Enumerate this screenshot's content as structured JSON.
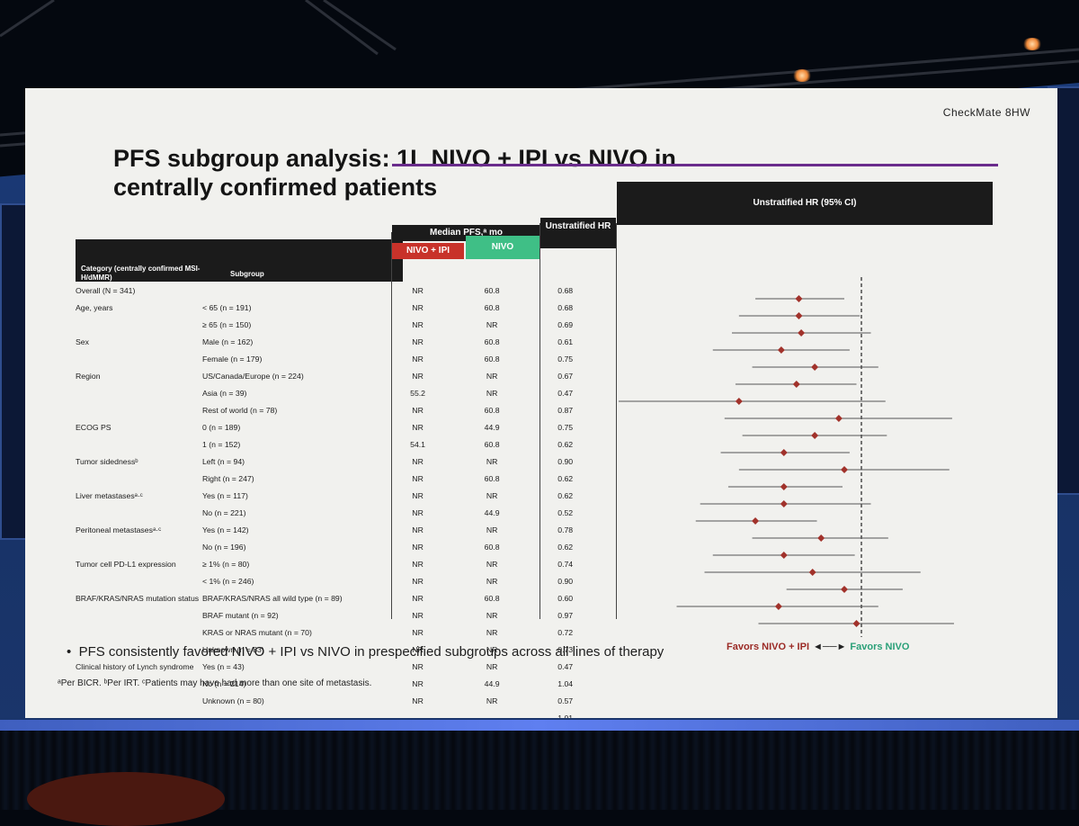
{
  "slide": {
    "brand": "CheckMate 8HW",
    "title": "PFS subgroup analysis: 1L NIVO + IPI vs NIVO in centrally confirmed patients",
    "headers": {
      "category": "Category (centrally confirmed MSI-H/dMMR)",
      "subgroup": "Subgroup",
      "median_pfs": "Median PFS,ᵃ mo",
      "arm1": "NIVO + IPI",
      "arm2": "NIVO",
      "hr": "Unstratified HR",
      "forest": "Unstratified HR (95% CI)"
    },
    "rows": [
      {
        "category": "Overall (N = 341)",
        "subgroup": "",
        "nivo_ipi": "NR",
        "nivo": "60.8",
        "hr": "0.68",
        "lo": 0.52,
        "hi": 0.9
      },
      {
        "category": "Age, years",
        "subgroup": "< 65 (n = 191)",
        "nivo_ipi": "NR",
        "nivo": "60.8",
        "hr": "0.68",
        "lo": 0.47,
        "hi": 0.99
      },
      {
        "category": "",
        "subgroup": "≥ 65 (n = 150)",
        "nivo_ipi": "NR",
        "nivo": "NR",
        "hr": "0.69",
        "lo": 0.45,
        "hi": 1.06
      },
      {
        "category": "Sex",
        "subgroup": "Male (n = 162)",
        "nivo_ipi": "NR",
        "nivo": "60.8",
        "hr": "0.61",
        "lo": 0.4,
        "hi": 0.93
      },
      {
        "category": "",
        "subgroup": "Female (n = 179)",
        "nivo_ipi": "NR",
        "nivo": "60.8",
        "hr": "0.75",
        "lo": 0.51,
        "hi": 1.11
      },
      {
        "category": "Region",
        "subgroup": "US/Canada/Europe (n = 224)",
        "nivo_ipi": "NR",
        "nivo": "NR",
        "hr": "0.67",
        "lo": 0.46,
        "hi": 0.97
      },
      {
        "category": "",
        "subgroup": "Asia (n = 39)",
        "nivo_ipi": "55.2",
        "nivo": "NR",
        "hr": "0.47",
        "lo": 0.19,
        "hi": 1.16
      },
      {
        "category": "",
        "subgroup": "Rest of world (n = 78)",
        "nivo_ipi": "NR",
        "nivo": "60.8",
        "hr": "0.87",
        "lo": 0.43,
        "hi": 1.75
      },
      {
        "category": "ECOG PS",
        "subgroup": "0 (n = 189)",
        "nivo_ipi": "NR",
        "nivo": "44.9",
        "hr": "0.75",
        "lo": 0.48,
        "hi": 1.17
      },
      {
        "category": "",
        "subgroup": "1 (n = 152)",
        "nivo_ipi": "54.1",
        "nivo": "60.8",
        "hr": "0.62",
        "lo": 0.42,
        "hi": 0.93
      },
      {
        "category": "Tumor sidednessᵇ",
        "subgroup": "Left (n = 94)",
        "nivo_ipi": "NR",
        "nivo": "NR",
        "hr": "0.90",
        "lo": 0.47,
        "hi": 1.72
      },
      {
        "category": "",
        "subgroup": "Right (n = 247)",
        "nivo_ipi": "NR",
        "nivo": "60.8",
        "hr": "0.62",
        "lo": 0.44,
        "hi": 0.89
      },
      {
        "category": "Liver metastasesᵃ·ᶜ",
        "subgroup": "Yes (n = 117)",
        "nivo_ipi": "NR",
        "nivo": "NR",
        "hr": "0.62",
        "lo": 0.37,
        "hi": 1.06
      },
      {
        "category": "",
        "subgroup": "No (n = 221)",
        "nivo_ipi": "NR",
        "nivo": "44.9",
        "hr": "0.52",
        "lo": 0.36,
        "hi": 0.76
      },
      {
        "category": "Peritoneal metastasesᵃ·ᶜ",
        "subgroup": "Yes (n = 142)",
        "nivo_ipi": "NR",
        "nivo": "NR",
        "hr": "0.78",
        "lo": 0.51,
        "hi": 1.18
      },
      {
        "category": "",
        "subgroup": "No (n = 196)",
        "nivo_ipi": "NR",
        "nivo": "60.8",
        "hr": "0.62",
        "lo": 0.4,
        "hi": 0.96
      },
      {
        "category": "Tumor cell PD-L1 expression",
        "subgroup": "≥ 1% (n = 80)",
        "nivo_ipi": "NR",
        "nivo": "NR",
        "hr": "0.74",
        "lo": 0.38,
        "hi": 1.44
      },
      {
        "category": "",
        "subgroup": "< 1% (n = 246)",
        "nivo_ipi": "NR",
        "nivo": "NR",
        "hr": "0.90",
        "lo": 0.63,
        "hi": 1.29
      },
      {
        "category": "BRAF/KRAS/NRAS mutation status",
        "subgroup": "BRAF/KRAS/NRAS all wild type (n = 89)",
        "nivo_ipi": "NR",
        "nivo": "60.8",
        "hr": "0.60",
        "lo": 0.32,
        "hi": 1.11
      },
      {
        "category": "",
        "subgroup": "BRAF mutant (n = 92)",
        "nivo_ipi": "NR",
        "nivo": "NR",
        "hr": "0.97",
        "lo": 0.53,
        "hi": 1.77
      },
      {
        "category": "",
        "subgroup": "KRAS or NRAS mutant (n = 70)",
        "nivo_ipi": "NR",
        "nivo": "NR",
        "hr": "0.72",
        "lo": 0.35,
        "hi": 1.48
      },
      {
        "category": "",
        "subgroup": "Unknown (n = 83)",
        "nivo_ipi": "NR",
        "nivo": "NR",
        "hr": "0.73",
        "lo": 0.38,
        "hi": 1.41
      },
      {
        "category": "Clinical history of Lynch syndrome",
        "subgroup": "Yes (n = 43)",
        "nivo_ipi": "NR",
        "nivo": "NR",
        "hr": "0.47",
        "lo": 0.2,
        "hi": 1.1
      },
      {
        "category": "",
        "subgroup": "No (n = 214)",
        "nivo_ipi": "NR",
        "nivo": "44.9",
        "hr": "1.04",
        "lo": 0.68,
        "hi": 1.58
      },
      {
        "category": "",
        "subgroup": "Unknown (n = 80)",
        "nivo_ipi": "NR",
        "nivo": "NR",
        "hr": "0.57",
        "lo": 0.3,
        "hi": 1.08
      }
    ],
    "trailing_hr": "1.01",
    "axis_ticks": [
      "0.25",
      "0.5",
      "1",
      "2"
    ],
    "favors_left": "Favors NIVO + IPI",
    "favors_right": "Favors NIVO",
    "bullet": "PFS consistently favored NIVO + IPI vs NIVO in prespecified subgroups across all lines of therapy",
    "footnote": "ᵃPer BICR. ᵇPer IRT. ᶜPatients may have had more than one site of metastasis."
  },
  "chart_data": {
    "type": "forest",
    "x_scale": "log2",
    "xlim": [
      0.25,
      2
    ],
    "x_ticks": [
      0.25,
      0.5,
      1,
      2
    ],
    "reference_line": 1,
    "marker_color": "#a1322b"
  }
}
